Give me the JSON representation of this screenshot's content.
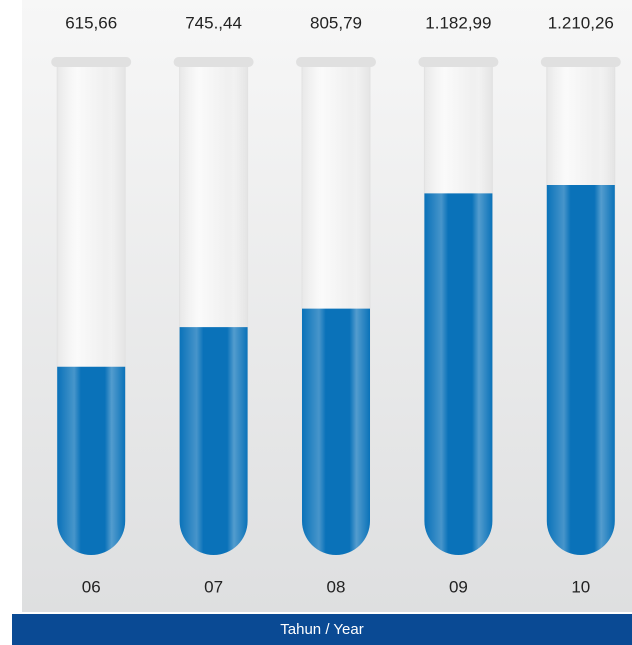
{
  "chart_data": {
    "type": "tube",
    "categories": [
      "06",
      "07",
      "08",
      "09",
      "10"
    ],
    "values": [
      615.66,
      745.44,
      805.79,
      1182.99,
      1210.26
    ],
    "value_labels": [
      "615,66",
      "745.,44",
      "805,79",
      "1.182,99",
      "1.210,26"
    ],
    "color": "#0a72b9",
    "xlabel": "Tahun / Year"
  }
}
